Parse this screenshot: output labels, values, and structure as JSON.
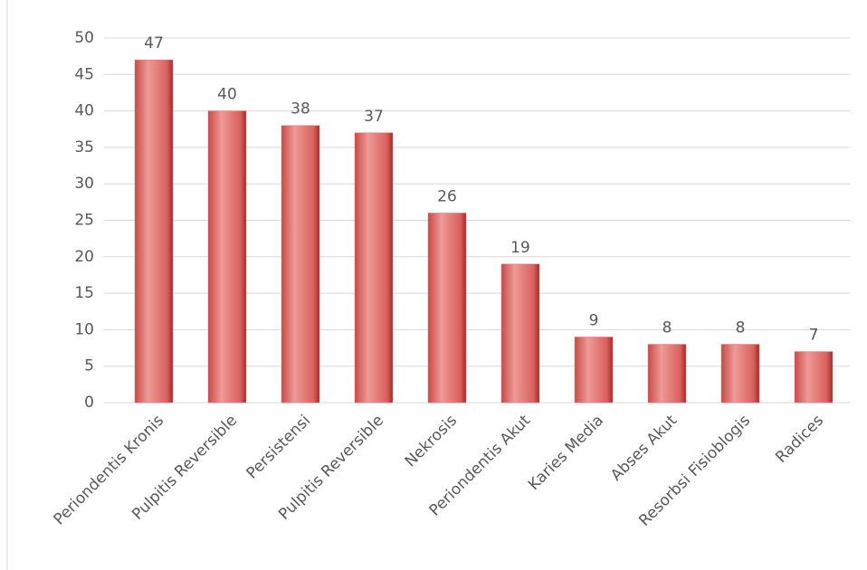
{
  "chart_data": {
    "type": "bar",
    "categories": [
      "Periondentis Kronis",
      "Pulpitis Reversible",
      "Persistensi",
      "Pulpitis Reversible",
      "Nekrosis",
      "Periondentis Akut",
      "Karies Media",
      "Abses Akut",
      "Resorbsi Fisioblogis",
      "Radices"
    ],
    "values": [
      47,
      40,
      38,
      37,
      26,
      19,
      9,
      8,
      8,
      7
    ],
    "color": "#e07a76",
    "ylim": [
      0,
      50
    ],
    "yticks": [
      0,
      5,
      10,
      15,
      20,
      25,
      30,
      35,
      40,
      45,
      50
    ],
    "grid": true
  }
}
